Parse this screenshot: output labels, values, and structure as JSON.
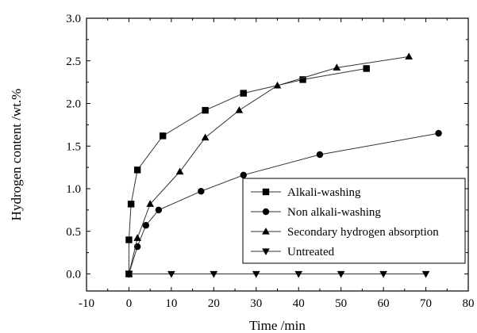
{
  "chart_data": {
    "type": "line",
    "xlabel": "Time /min",
    "ylabel": "Hydrogen content /wt.%",
    "xlim": [
      -10,
      80
    ],
    "ylim": [
      -0.2,
      3.0
    ],
    "xticks": [
      -10,
      0,
      10,
      20,
      30,
      40,
      50,
      60,
      70,
      80
    ],
    "yticks": [
      0.0,
      0.5,
      1.0,
      1.5,
      2.0,
      2.5,
      3.0
    ],
    "xtick_labels": [
      "-10",
      "0",
      "10",
      "20",
      "30",
      "40",
      "50",
      "60",
      "70",
      "80"
    ],
    "ytick_labels": [
      "0.0",
      "0.5",
      "1.0",
      "1.5",
      "2.0",
      "2.5",
      "3.0"
    ],
    "grid": false,
    "legend_position": "lower-right",
    "series": [
      {
        "name": "Alkali-washing",
        "marker": "square",
        "x": [
          0,
          0,
          0.5,
          2,
          8,
          18,
          27,
          41,
          56
        ],
        "y": [
          0,
          0.4,
          0.82,
          1.22,
          1.62,
          1.92,
          2.12,
          2.28,
          2.41
        ]
      },
      {
        "name": "Non alkali-washing",
        "marker": "circle",
        "x": [
          0,
          2,
          4,
          7,
          17,
          27,
          45,
          73
        ],
        "y": [
          0,
          0.32,
          0.57,
          0.75,
          0.97,
          1.16,
          1.4,
          1.65
        ]
      },
      {
        "name": "Secondary hydrogen absorption",
        "marker": "triangle-up",
        "x": [
          0,
          2,
          5,
          12,
          18,
          26,
          35,
          49,
          66
        ],
        "y": [
          0,
          0.42,
          0.82,
          1.2,
          1.6,
          1.92,
          2.21,
          2.42,
          2.55
        ]
      },
      {
        "name": "Untreated",
        "marker": "triangle-down",
        "x": [
          0,
          10,
          20,
          30,
          40,
          50,
          60,
          70
        ],
        "y": [
          0,
          0,
          0,
          0,
          0,
          0,
          0,
          0
        ]
      }
    ]
  }
}
